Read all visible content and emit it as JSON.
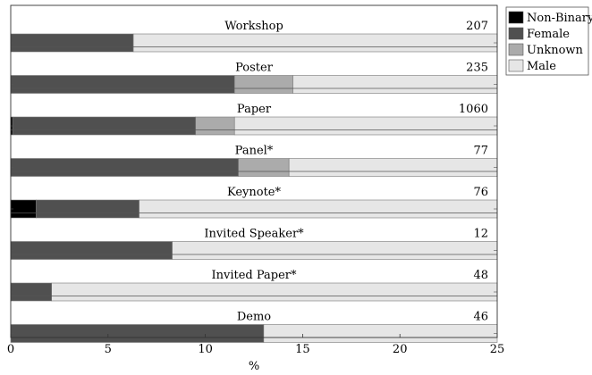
{
  "chart_data": {
    "type": "bar",
    "orientation": "horizontal",
    "stacked": true,
    "xlabel": "%",
    "xlim": [
      0,
      25
    ],
    "xticks": [
      0,
      5,
      10,
      15,
      20,
      25
    ],
    "legend_position": "top-right-outside",
    "series": [
      {
        "name": "Non-Binary",
        "color": "#000000"
      },
      {
        "name": "Female",
        "color": "#505050"
      },
      {
        "name": "Unknown",
        "color": "#ababab"
      },
      {
        "name": "Male",
        "color": "#e6e6e6"
      }
    ],
    "categories": [
      {
        "name": "Workshop",
        "count": "207",
        "values": [
          0,
          6.3,
          0,
          93.7
        ]
      },
      {
        "name": "Poster",
        "count": "235",
        "values": [
          0,
          11.5,
          3.0,
          85.5
        ]
      },
      {
        "name": "Paper",
        "count": "1060",
        "values": [
          0.1,
          9.4,
          2.0,
          88.5
        ]
      },
      {
        "name": "Panel*",
        "count": "77",
        "values": [
          0,
          11.7,
          2.6,
          85.7
        ]
      },
      {
        "name": "Keynote*",
        "count": "76",
        "values": [
          1.3,
          5.3,
          0,
          93.4
        ]
      },
      {
        "name": "Invited Speaker*",
        "count": "12",
        "values": [
          0,
          8.3,
          0,
          91.7
        ]
      },
      {
        "name": "Invited Paper*",
        "count": "48",
        "values": [
          0,
          2.1,
          0,
          97.9
        ]
      },
      {
        "name": "Demo",
        "count": "46",
        "values": [
          0,
          13.0,
          0,
          87.0
        ]
      }
    ]
  }
}
